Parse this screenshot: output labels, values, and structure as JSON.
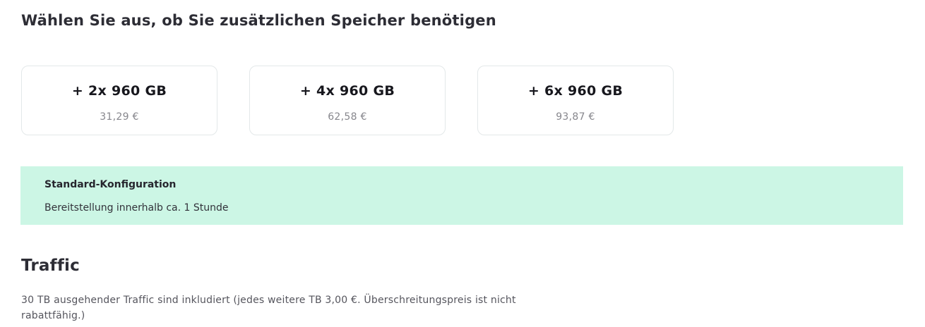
{
  "storage_section": {
    "heading": "Wählen Sie aus, ob Sie zusätzlichen Speicher benötigen",
    "options": [
      {
        "label": "+ 2x 960 GB",
        "price": "31,29 €"
      },
      {
        "label": "+ 4x 960 GB",
        "price": "62,58 €"
      },
      {
        "label": "+ 6x 960 GB",
        "price": "93,87 €"
      }
    ]
  },
  "info_banner": {
    "title": "Standard-Konfiguration",
    "text": "Bereitstellung innerhalb ca. 1 Stunde",
    "background_color": "#ccf6e5"
  },
  "traffic_section": {
    "heading": "Traffic",
    "description_line1": "30 TB ausgehender Traffic sind inkludiert (jedes weitere TB 3,00 €. Überschreitungspreis ist nicht",
    "description_line2": "rabattfähig.)"
  },
  "colors": {
    "heading_text": "#2d2d35",
    "card_label_text": "#17171d",
    "card_price_text": "#87878d",
    "card_border": "#e3e8e9",
    "banner_background": "#ccf6e5",
    "banner_text": "#26262e",
    "paragraph_text": "#55555d"
  }
}
